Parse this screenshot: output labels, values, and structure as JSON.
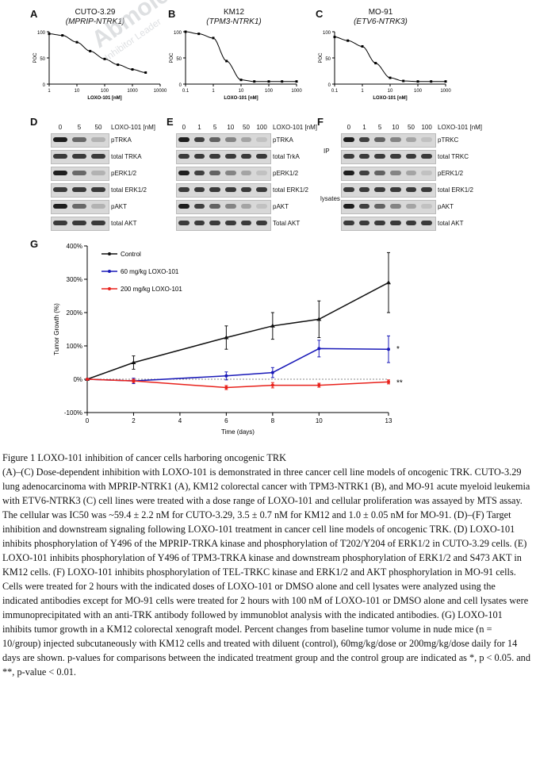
{
  "figure": {
    "panels_abc": [
      {
        "letter": "A",
        "cell_line": "CUTO-3.29",
        "fusion": "(MPRIP-NTRK1)"
      },
      {
        "letter": "B",
        "cell_line": "KM12",
        "fusion": "(TPM3-NTRK1)"
      },
      {
        "letter": "C",
        "cell_line": "MO-91",
        "fusion": "(ETV6-NTRK3)"
      }
    ],
    "blots": {
      "D": {
        "letter": "D",
        "doses": [
          "0",
          "5",
          "50"
        ],
        "dose_unit": "LOXO-101 [nM]",
        "rows": [
          "pTRKA",
          "total TRKA",
          "pERK1/2",
          "total ERK1/2",
          "pAKT",
          "total AKT"
        ]
      },
      "E": {
        "letter": "E",
        "doses": [
          "0",
          "1",
          "5",
          "10",
          "50",
          "100"
        ],
        "dose_unit": "LOXO-101 [nM]",
        "rows": [
          "pTRKA",
          "total TrkA",
          "pERK1/2",
          "total ERK1/2",
          "pAKT",
          "Total AKT"
        ]
      },
      "F": {
        "letter": "F",
        "doses": [
          "0",
          "1",
          "5",
          "10",
          "50",
          "100"
        ],
        "dose_unit": "LOXO-101 [nM]",
        "rows": [
          "pTRKC",
          "total TRKC",
          "pERK1/2",
          "total ERK1/2",
          "pAKT",
          "total AKT"
        ],
        "side_labels": [
          "IP",
          "lysates"
        ]
      }
    },
    "panel_g": {
      "letter": "G"
    },
    "watermark": {
      "brand": "Abmole",
      "tagline": "Inhibitor Leader",
      "color": "#9aa0a6",
      "accent": "#3a8fd8",
      "dot": "#f5b942"
    }
  },
  "chart_data": [
    {
      "panel": "A",
      "type": "scatter",
      "xlabel": "LOXO-101 [nM]",
      "ylabel": "POC",
      "xscale": "log",
      "xlim": [
        1,
        10000
      ],
      "ylim": [
        0,
        100
      ],
      "xticks": [
        "1",
        "10",
        "100",
        "1000",
        "10000"
      ],
      "yticks": [
        "0",
        "50",
        "100"
      ],
      "x": [
        1,
        3,
        10,
        30,
        100,
        300,
        1000,
        3000
      ],
      "y": [
        96,
        93,
        80,
        63,
        48,
        37,
        28,
        22
      ],
      "fit": "sigmoid"
    },
    {
      "panel": "B",
      "type": "scatter",
      "xlabel": "LOXO-101 [nM]",
      "ylabel": "POC",
      "xscale": "log",
      "xlim": [
        0.1,
        1000
      ],
      "ylim": [
        0,
        100
      ],
      "xticks": [
        "0.1",
        "1",
        "10",
        "100",
        "1000"
      ],
      "yticks": [
        "0",
        "50",
        "100"
      ],
      "x": [
        0.1,
        0.3,
        1,
        3,
        10,
        30,
        100,
        300,
        1000
      ],
      "y": [
        100,
        96,
        88,
        44,
        8,
        5,
        5,
        5,
        5
      ],
      "fit": "sigmoid"
    },
    {
      "panel": "C",
      "type": "scatter",
      "xlabel": "LOXO-101 [nM]",
      "ylabel": "POC",
      "xscale": "log",
      "xlim": [
        0.1,
        1000
      ],
      "ylim": [
        0,
        100
      ],
      "xticks": [
        "0.1",
        "1",
        "10",
        "100",
        "1000"
      ],
      "yticks": [
        "0",
        "50",
        "100"
      ],
      "x": [
        0.1,
        0.3,
        1,
        3,
        10,
        30,
        100,
        300,
        1000
      ],
      "y": [
        90,
        83,
        72,
        40,
        12,
        6,
        5,
        5,
        5
      ],
      "fit": "sigmoid"
    },
    {
      "panel": "G",
      "type": "line",
      "xlabel": "Time (days)",
      "ylabel": "Tumor Growth (%)",
      "x": [
        0,
        2,
        6,
        8,
        10,
        13
      ],
      "xticks": [
        "0",
        "2",
        "4",
        "6",
        "8",
        "10",
        "13"
      ],
      "ylim": [
        -100,
        400
      ],
      "yticks": [
        "-100%",
        "0%",
        "100%",
        "200%",
        "300%",
        "400%"
      ],
      "series": [
        {
          "name": "Control",
          "color": "#111111",
          "marker": "triangle",
          "values": [
            0,
            50,
            125,
            160,
            180,
            290
          ],
          "err": [
            0,
            20,
            35,
            40,
            55,
            90
          ]
        },
        {
          "name": "60 mg/kg LOXO-101",
          "color": "#1a1ab8",
          "marker": "circle",
          "values": [
            0,
            -5,
            10,
            20,
            92,
            90
          ],
          "err": [
            0,
            8,
            12,
            15,
            25,
            40
          ]
        },
        {
          "name": "200 mg/kg LOXO-101",
          "color": "#e8211b",
          "marker": "circle",
          "values": [
            0,
            -5,
            -25,
            -18,
            -18,
            -8
          ],
          "err": [
            0,
            5,
            6,
            8,
            6,
            6
          ]
        }
      ],
      "annotations": [
        "*",
        "**"
      ],
      "legend": "top-left"
    }
  ],
  "caption": {
    "title": "Figure 1 LOXO-101 inhibition of cancer cells harboring oncogenic TRK",
    "body": "(A)–(C) Dose-dependent inhibition with LOXO-101 is demonstrated in three cancer cell line models of oncogenic TRK. CUTO-3.29 lung adenocarcinoma with MPRIP-NTRK1 (A), KM12 colorectal cancer with TPM3-NTRK1 (B), and MO-91 acute myeloid leukemia with ETV6-NTRK3 (C) cell lines were treated with a dose range of LOXO-101 and cellular proliferation was assayed by MTS assay. The cellular was IC50 was ~59.4 ± 2.2 nM for CUTO-3.29, 3.5 ± 0.7 nM for KM12 and 1.0 ± 0.05 nM for MO-91. (D)–(F) Target inhibition and downstream signaling following LOXO-101 treatment in cancer cell line models of oncogenic TRK. (D) LOXO-101 inhibits phosphorylation of Y496 of the MPRIP-TRKA kinase and phosphorylation of T202/Y204 of ERK1/2 in CUTO-3.29 cells. (E) LOXO-101 inhibits phosphorylation of Y496 of TPM3-TRKA kinase and downstream phosphorylation of ERK1/2 and S473 AKT in KM12 cells. (F) LOXO-101 inhibits phosphorylation of TEL-TRKC kinase and ERK1/2 and AKT phosphorylation in MO-91 cells. Cells were treated for 2 hours with the indicated doses of LOXO-101 or DMSO alone and cell lysates were analyzed using the indicated antibodies except for MO-91 cells were treated for 2 hours with 100 nM of LOXO-101 or DMSO alone and cell lysates were immunoprecipitated with an anti-TRK antibody followed by immunoblot analysis with the indicated antibodies. (G) LOXO-101 inhibits tumor growth in a KM12 colorectal xenograft model. Percent changes from baseline tumor volume in nude mice (n = 10/group) injected subcutaneously with KM12 cells and treated with diluent (control), 60mg/kg/dose or 200mg/kg/dose daily for 14 days are shown. p-values for comparisons between the indicated treatment group and the control group are indicated as *, p < 0.05. and **, p-value < 0.01."
  }
}
